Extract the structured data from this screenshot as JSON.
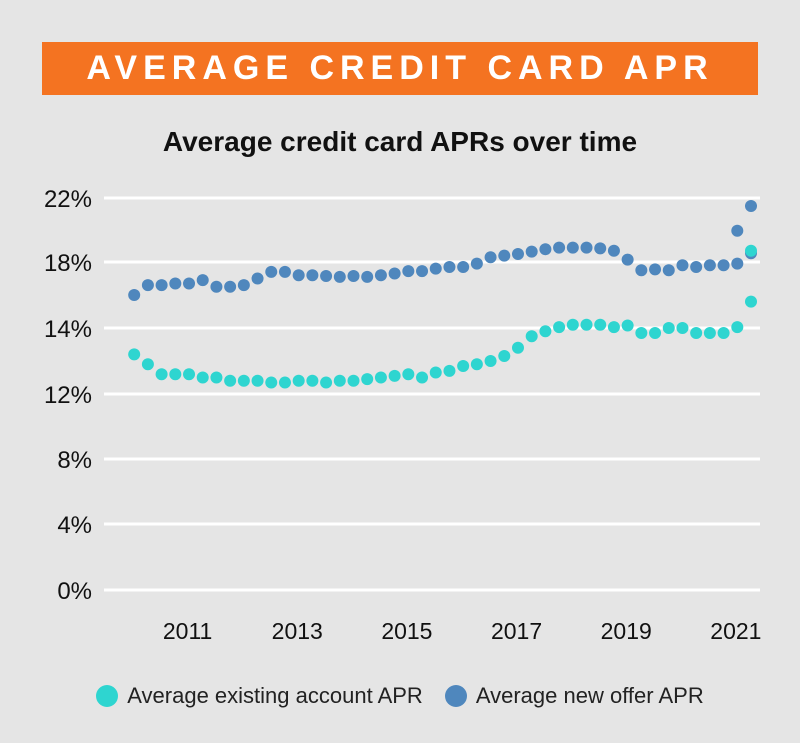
{
  "banner": {
    "title": "AVERAGE CREDIT CARD APR"
  },
  "chart_data": {
    "type": "scatter",
    "title": "Average credit card APRs over time",
    "xlabel": "",
    "ylabel": "",
    "xlim": [
      2010.15,
      2021.75
    ],
    "ylim": [
      0,
      22
    ],
    "y_ticks": [
      0,
      4,
      8,
      12,
      14,
      18,
      22
    ],
    "y_tick_labels": [
      "0%",
      "4%",
      "8%",
      "12%",
      "14%",
      "18%",
      "22%"
    ],
    "x_ticks": [
      2011,
      2013,
      2015,
      2017,
      2019,
      2021
    ],
    "x_tick_labels": [
      "2011",
      "2013",
      "2015",
      "2017",
      "2019",
      "2021"
    ],
    "grid": true,
    "legend_position": "bottom",
    "x": [
      2010.5,
      2010.75,
      2011.0,
      2011.25,
      2011.5,
      2011.75,
      2012.0,
      2012.25,
      2012.5,
      2012.75,
      2013.0,
      2013.25,
      2013.5,
      2013.75,
      2014.0,
      2014.25,
      2014.5,
      2014.75,
      2015.0,
      2015.25,
      2015.5,
      2015.75,
      2016.0,
      2016.25,
      2016.5,
      2016.75,
      2017.0,
      2017.25,
      2017.5,
      2017.75,
      2018.0,
      2018.25,
      2018.5,
      2018.75,
      2019.0,
      2019.25,
      2019.5,
      2019.75,
      2020.0,
      2020.25,
      2020.5,
      2020.75,
      2021.0,
      2021.25,
      2021.5,
      2021.75
    ],
    "series": [
      {
        "name": "Average existing account APR",
        "color": "#2ed5d0",
        "values": [
          13.2,
          12.9,
          12.6,
          12.6,
          12.6,
          12.5,
          12.5,
          12.4,
          12.4,
          12.4,
          12.35,
          12.35,
          12.4,
          12.4,
          12.35,
          12.4,
          12.4,
          12.45,
          12.5,
          12.55,
          12.6,
          12.5,
          12.65,
          12.7,
          12.85,
          12.9,
          13.0,
          13.15,
          13.4,
          13.75,
          13.9,
          14.05,
          14.2,
          14.2,
          14.2,
          14.05,
          14.15,
          13.85,
          13.85,
          14.0,
          14.0,
          13.85,
          13.85,
          13.85,
          14.05,
          15.6
        ]
      },
      {
        "name": "Average new offer APR",
        "color": "#4f87bd",
        "values": [
          16.0,
          16.6,
          16.6,
          16.7,
          16.7,
          16.9,
          16.5,
          16.5,
          16.6,
          17.0,
          17.4,
          17.4,
          17.2,
          17.2,
          17.15,
          17.1,
          17.15,
          17.1,
          17.2,
          17.3,
          17.45,
          17.45,
          17.6,
          17.7,
          17.7,
          17.9,
          18.3,
          18.4,
          18.5,
          18.65,
          18.8,
          18.9,
          18.9,
          18.9,
          18.85,
          18.7,
          18.15,
          17.5,
          17.55,
          17.5,
          17.8,
          17.7,
          17.8,
          17.8,
          17.9,
          18.55
        ]
      }
    ],
    "extra_points": [
      {
        "series": 1,
        "x": 2021.5,
        "y": 19.95
      },
      {
        "series": 1,
        "x": 2021.75,
        "y": 21.5
      },
      {
        "series": 0,
        "x": 2021.75,
        "y": 18.7
      }
    ]
  }
}
